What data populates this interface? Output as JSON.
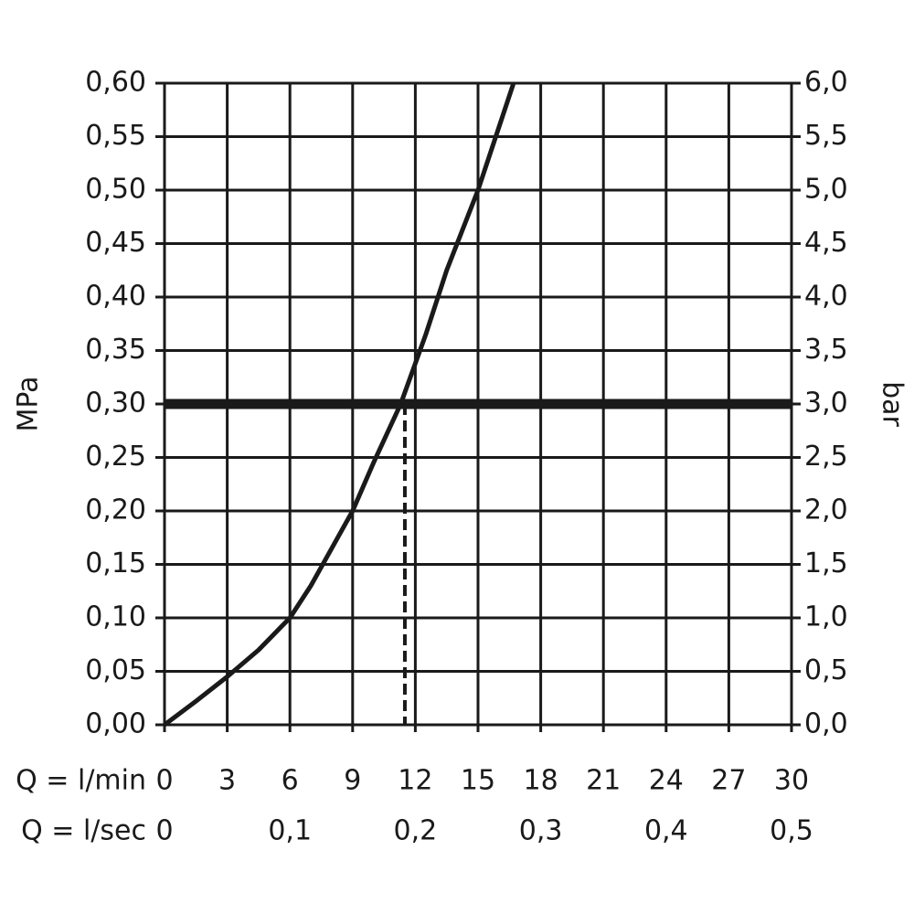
{
  "chart_data": {
    "type": "line",
    "x_label": "Q = l/min",
    "x2_label": "Q = l/sec",
    "ylabel": "MPa",
    "y2label": "bar",
    "x": [
      0,
      1.5,
      3,
      4.5,
      6,
      7,
      8,
      9,
      10,
      11.3,
      12.5,
      13.5,
      15,
      16.7
    ],
    "values": [
      0,
      0.022,
      0.045,
      0.07,
      0.1,
      0.13,
      0.165,
      0.2,
      0.245,
      0.3,
      0.365,
      0.425,
      0.5,
      0.6
    ],
    "color": "#1a1a1a",
    "xlim": [
      0,
      30
    ],
    "xticks": [
      0,
      3,
      6,
      9,
      12,
      15,
      18,
      21,
      24,
      27,
      30
    ],
    "x2lim": [
      0,
      0.5
    ],
    "x2ticks": [
      0,
      {
        "value": 0.1,
        "label": "0,1"
      },
      {
        "value": 0.2,
        "label": "0,2"
      },
      {
        "value": 0.3,
        "label": "0,3"
      },
      {
        "value": 0.4,
        "label": "0,4"
      },
      {
        "value": 0.5,
        "label": "0,5"
      }
    ],
    "ylim": [
      0,
      0.6
    ],
    "yticks": [
      {
        "value": 0,
        "label": "0,00"
      },
      {
        "value": 0.05,
        "label": "0,05"
      },
      {
        "value": 0.1,
        "label": "0,10"
      },
      {
        "value": 0.15,
        "label": "0,15"
      },
      {
        "value": 0.2,
        "label": "0,20"
      },
      {
        "value": 0.25,
        "label": "0,25"
      },
      {
        "value": 0.3,
        "label": "0,30"
      },
      {
        "value": 0.35,
        "label": "0,35"
      },
      {
        "value": 0.4,
        "label": "0,40"
      },
      {
        "value": 0.45,
        "label": "0,45"
      },
      {
        "value": 0.5,
        "label": "0,50"
      },
      {
        "value": 0.55,
        "label": "0,55"
      },
      {
        "value": 0.6,
        "label": "0,60"
      }
    ],
    "y2lim": [
      0,
      6
    ],
    "y2ticks": [
      {
        "value": 0,
        "label": "0,0"
      },
      {
        "value": 0.5,
        "label": "0,5"
      },
      {
        "value": 1,
        "label": "1,0"
      },
      {
        "value": 1.5,
        "label": "1,5"
      },
      {
        "value": 2,
        "label": "2,0"
      },
      {
        "value": 2.5,
        "label": "2,5"
      },
      {
        "value": 3,
        "label": "3,0"
      },
      {
        "value": 3.5,
        "label": "3,5"
      },
      {
        "value": 4,
        "label": "4,0"
      },
      {
        "value": 4.5,
        "label": "4,5"
      },
      {
        "value": 5,
        "label": "5,0"
      },
      {
        "value": 5.5,
        "label": "5,5"
      },
      {
        "value": 6,
        "label": "6,0"
      }
    ],
    "reference_y": 0.3,
    "reference_x": 11.5,
    "grid": true
  }
}
